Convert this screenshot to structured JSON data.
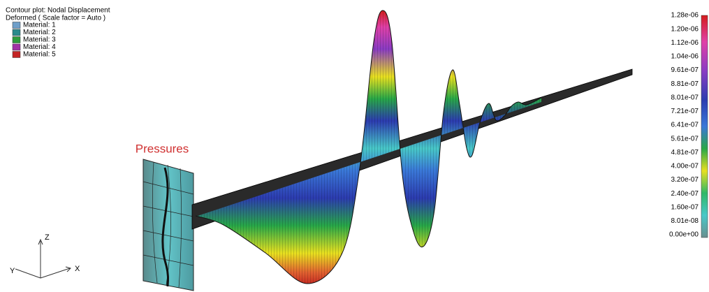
{
  "header": {
    "line1": "Contour plot:  Nodal Displacement",
    "line2": "Deformed ( Scale factor = Auto )"
  },
  "materials": [
    {
      "label": "Material:  1",
      "color": "#6f9fc9"
    },
    {
      "label": "Material:  2",
      "color": "#2a8a8c"
    },
    {
      "label": "Material:  3",
      "color": "#2e9c3c"
    },
    {
      "label": "Material:  4",
      "color": "#a232a6"
    },
    {
      "label": "Material:  5",
      "color": "#c42424"
    }
  ],
  "colorbar": {
    "labels": [
      "1.28e-06",
      "1.20e-06",
      "1.12e-06",
      "1.04e-06",
      "9.61e-07",
      "8.81e-07",
      "8.01e-07",
      "7.21e-07",
      "6.41e-07",
      "5.61e-07",
      "4.81e-07",
      "4.00e-07",
      "3.20e-07",
      "2.40e-07",
      "1.60e-07",
      "8.01e-08",
      "0.00e+00"
    ]
  },
  "annotation": "Pressures",
  "axes": {
    "z": "Z",
    "y": "Y",
    "x": "X"
  }
}
